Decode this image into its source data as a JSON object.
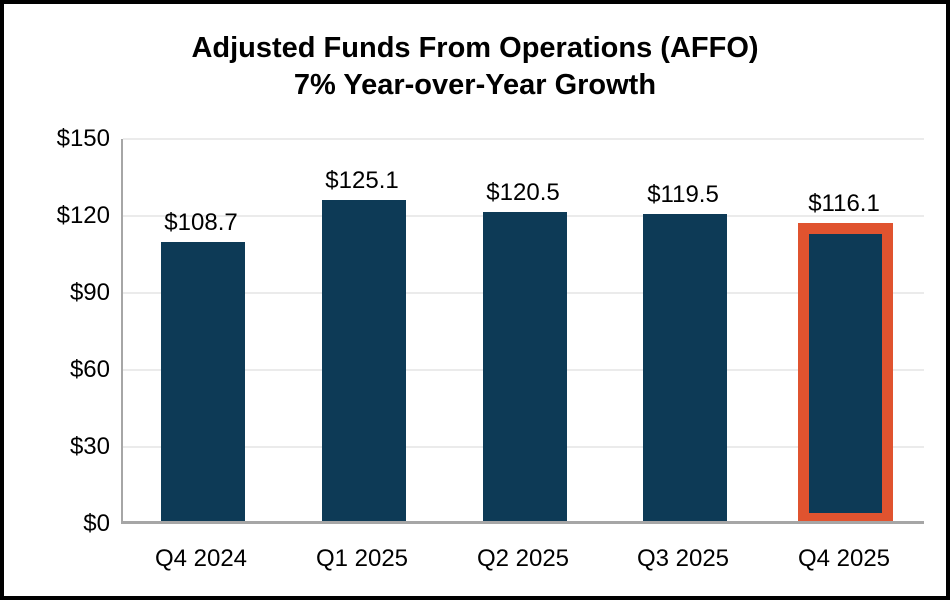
{
  "title": {
    "line1": "Adjusted Funds From Operations (AFFO)",
    "line2": "7% Year-over-Year Growth"
  },
  "chart_data": {
    "type": "bar",
    "title": "Adjusted Funds From Operations (AFFO)",
    "subtitle": "7% Year-over-Year Growth",
    "categories": [
      "Q4 2024",
      "Q1 2025",
      "Q2 2025",
      "Q3 2025",
      "Q4 2025"
    ],
    "values": [
      108.7,
      125.1,
      120.5,
      119.5,
      116.1
    ],
    "value_labels": [
      "$108.7",
      "$125.1",
      "$120.5",
      "$119.5",
      "$116.1"
    ],
    "xlabel": "",
    "ylabel": "",
    "ylim": [
      0,
      150
    ],
    "ytick_interval": 30,
    "ytick_labels": [
      "$0",
      "$30",
      "$60",
      "$90",
      "$120",
      "$150"
    ],
    "grid": true,
    "legend": "none",
    "highlighted_category": "Q4 2025",
    "highlighted_index": 4,
    "colors": {
      "bar_fill": "#0d3a56",
      "highlight_outline": "#e0532f",
      "gridline": "#ebebeb",
      "axis_line": "#a6a6a6",
      "text": "#000000",
      "background": "#ffffff",
      "frame_border": "#000000"
    }
  }
}
